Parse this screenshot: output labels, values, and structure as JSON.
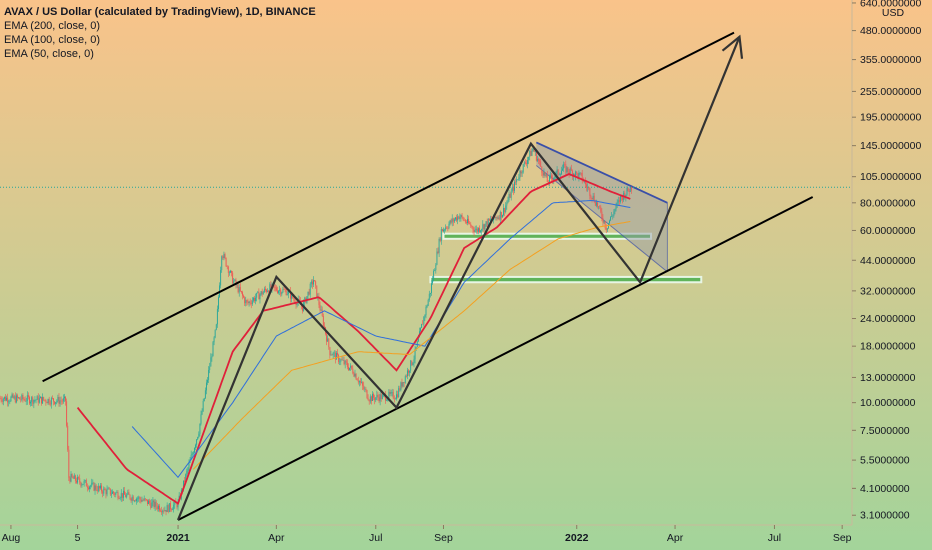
{
  "legend": {
    "title": "AVAX / US Dollar (calculated by TradingView), 1D, BINANCE",
    "indicators": [
      "EMA (200, close, 0)",
      "EMA (100, close, 0)",
      "EMA (50, close, 0)"
    ]
  },
  "colors": {
    "bg_top": "#f9c38a",
    "bg_bottom": "#a3d49a",
    "candle_up": "#26a69a",
    "candle_down": "#ef5350",
    "ema200": "#f4a020",
    "ema100": "#2f6fdb",
    "ema50": "#e0203a",
    "support_zone": "#4caf50",
    "wedge_fill": "#9098a8",
    "wedge_line": "#3a4fa8"
  },
  "chart_data": {
    "type": "candlestick",
    "symbol": "AVAX / US Dollar",
    "interval": "1D",
    "exchange": "BINANCE",
    "currency": "USD",
    "y_scale": "log",
    "ylim": [
      2.8,
      660
    ],
    "y_ticks": [
      640,
      480,
      355,
      255,
      195,
      145,
      105,
      80,
      60,
      44,
      32,
      24,
      18,
      13,
      10,
      7.5,
      5.5,
      4.1,
      3.1
    ],
    "y_tick_labels": [
      "640.0000000",
      "480.0000000",
      "355.0000000",
      "255.0000000",
      "195.0000000",
      "145.0000000",
      "105.0000000",
      "80.0000000",
      "60.0000000",
      "44.0000000",
      "32.0000000",
      "24.0000000",
      "18.0000000",
      "13.0000000",
      "10.0000000",
      "7.5000000",
      "5.5000000",
      "4.1000000",
      "3.1000000"
    ],
    "y_unit_label": "USD",
    "x_range": [
      "2020-07-22",
      "2022-09-10"
    ],
    "x_ticks": [
      {
        "date": "2020-08-01",
        "label": "Aug",
        "bold": false
      },
      {
        "date": "2020-10-01",
        "label": "5",
        "bold": false
      },
      {
        "date": "2021-01-01",
        "label": "2021",
        "bold": true
      },
      {
        "date": "2021-04-01",
        "label": "Apr",
        "bold": false
      },
      {
        "date": "2021-07-01",
        "label": "Jul",
        "bold": false
      },
      {
        "date": "2021-09-01",
        "label": "Sep",
        "bold": false
      },
      {
        "date": "2022-01-01",
        "label": "2022",
        "bold": true
      },
      {
        "date": "2022-04-01",
        "label": "Apr",
        "bold": false
      },
      {
        "date": "2022-07-01",
        "label": "Jul",
        "bold": false
      },
      {
        "date": "2022-09-01",
        "label": "Sep",
        "bold": false
      }
    ],
    "price_keypoints": [
      {
        "date": "2020-07-22",
        "price": 10.5
      },
      {
        "date": "2020-09-20",
        "price": 10.2
      },
      {
        "date": "2020-09-23",
        "price": 4.6
      },
      {
        "date": "2020-10-25",
        "price": 4.0
      },
      {
        "date": "2020-11-25",
        "price": 3.7
      },
      {
        "date": "2020-12-20",
        "price": 3.3
      },
      {
        "date": "2021-01-01",
        "price": 3.5
      },
      {
        "date": "2021-01-20",
        "price": 7.5
      },
      {
        "date": "2021-02-05",
        "price": 22
      },
      {
        "date": "2021-02-10",
        "price": 48
      },
      {
        "date": "2021-02-20",
        "price": 36
      },
      {
        "date": "2021-03-05",
        "price": 28
      },
      {
        "date": "2021-03-25",
        "price": 33
      },
      {
        "date": "2021-04-10",
        "price": 32
      },
      {
        "date": "2021-04-25",
        "price": 27
      },
      {
        "date": "2021-05-05",
        "price": 36
      },
      {
        "date": "2021-05-20",
        "price": 17
      },
      {
        "date": "2021-06-10",
        "price": 14
      },
      {
        "date": "2021-06-25",
        "price": 10.5
      },
      {
        "date": "2021-07-20",
        "price": 10.8
      },
      {
        "date": "2021-08-05",
        "price": 16
      },
      {
        "date": "2021-08-20",
        "price": 32
      },
      {
        "date": "2021-08-30",
        "price": 60
      },
      {
        "date": "2021-09-15",
        "price": 70
      },
      {
        "date": "2021-10-01",
        "price": 60
      },
      {
        "date": "2021-10-25",
        "price": 72
      },
      {
        "date": "2021-11-10",
        "price": 110
      },
      {
        "date": "2021-11-22",
        "price": 140
      },
      {
        "date": "2021-12-05",
        "price": 100
      },
      {
        "date": "2021-12-20",
        "price": 115
      },
      {
        "date": "2022-01-05",
        "price": 105
      },
      {
        "date": "2022-01-20",
        "price": 78
      },
      {
        "date": "2022-01-28",
        "price": 62
      },
      {
        "date": "2022-02-10",
        "price": 84
      },
      {
        "date": "2022-02-20",
        "price": 94
      }
    ],
    "ema_keypoints": {
      "ema50": [
        {
          "date": "2020-10-01",
          "price": 9.5
        },
        {
          "date": "2020-11-15",
          "price": 5.0
        },
        {
          "date": "2021-01-01",
          "price": 3.5
        },
        {
          "date": "2021-02-20",
          "price": 17
        },
        {
          "date": "2021-03-20",
          "price": 26
        },
        {
          "date": "2021-05-10",
          "price": 30
        },
        {
          "date": "2021-06-15",
          "price": 21
        },
        {
          "date": "2021-07-20",
          "price": 14
        },
        {
          "date": "2021-08-20",
          "price": 24
        },
        {
          "date": "2021-09-20",
          "price": 50
        },
        {
          "date": "2021-10-20",
          "price": 62
        },
        {
          "date": "2021-11-20",
          "price": 90
        },
        {
          "date": "2021-12-25",
          "price": 108
        },
        {
          "date": "2022-02-01",
          "price": 90
        },
        {
          "date": "2022-02-20",
          "price": 83
        }
      ],
      "ema100": [
        {
          "date": "2020-11-20",
          "price": 7.8
        },
        {
          "date": "2021-01-01",
          "price": 4.6
        },
        {
          "date": "2021-02-20",
          "price": 10
        },
        {
          "date": "2021-04-01",
          "price": 20
        },
        {
          "date": "2021-05-15",
          "price": 26
        },
        {
          "date": "2021-07-01",
          "price": 20
        },
        {
          "date": "2021-08-15",
          "price": 18
        },
        {
          "date": "2021-09-20",
          "price": 35
        },
        {
          "date": "2021-11-01",
          "price": 55
        },
        {
          "date": "2021-12-10",
          "price": 80
        },
        {
          "date": "2022-01-15",
          "price": 82
        },
        {
          "date": "2022-02-20",
          "price": 76
        }
      ],
      "ema200": [
        {
          "date": "2021-01-15",
          "price": 5.0
        },
        {
          "date": "2021-03-01",
          "price": 8.5
        },
        {
          "date": "2021-04-15",
          "price": 14
        },
        {
          "date": "2021-06-15",
          "price": 17
        },
        {
          "date": "2021-08-01",
          "price": 16.5
        },
        {
          "date": "2021-09-20",
          "price": 26
        },
        {
          "date": "2021-11-01",
          "price": 40
        },
        {
          "date": "2021-12-15",
          "price": 55
        },
        {
          "date": "2022-01-20",
          "price": 62
        },
        {
          "date": "2022-02-20",
          "price": 66
        }
      ]
    },
    "drawings": {
      "channel_upper": [
        {
          "date": "2020-08-30",
          "price": 12.5
        },
        {
          "date": "2022-05-25",
          "price": 470
        }
      ],
      "channel_lower": [
        {
          "date": "2021-01-01",
          "price": 2.95
        },
        {
          "date": "2022-08-05",
          "price": 85
        }
      ],
      "zigzag_projection": [
        {
          "date": "2021-01-01",
          "price": 2.95
        },
        {
          "date": "2021-04-01",
          "price": 37
        },
        {
          "date": "2021-07-20",
          "price": 9.5
        },
        {
          "date": "2021-11-20",
          "price": 148
        },
        {
          "date": "2022-02-28",
          "price": 35
        },
        {
          "date": "2022-05-30",
          "price": 450
        }
      ],
      "falling_wedge": {
        "top": [
          {
            "date": "2021-11-25",
            "price": 150
          },
          {
            "date": "2022-03-25",
            "price": 80
          }
        ],
        "bottom": [
          {
            "date": "2021-11-25",
            "price": 118
          },
          {
            "date": "2022-03-25",
            "price": 39
          }
        ],
        "right_edge_top": 80,
        "right_edge_bottom": 39
      },
      "support_zones": [
        {
          "from": "2021-09-01",
          "to": "2022-03-10",
          "low": 55,
          "high": 58
        },
        {
          "from": "2021-08-20",
          "to": "2022-04-25",
          "low": 35,
          "high": 37
        }
      ],
      "current_price_line": 94
    }
  }
}
